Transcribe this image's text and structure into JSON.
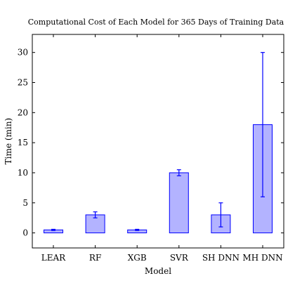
{
  "chart_data": {
    "type": "bar",
    "title": "Computational Cost of Each Model for 365 Days of Training Data",
    "xlabel": "Model",
    "ylabel": "Time (min)",
    "categories": [
      "LEAR",
      "RF",
      "XGB",
      "SVR",
      "SH DNN",
      "MH DNN"
    ],
    "values": [
      0.5,
      3.0,
      0.5,
      10.0,
      3.0,
      18.0
    ],
    "error_low": [
      0.4,
      2.5,
      0.4,
      9.5,
      1.0,
      6.0
    ],
    "error_high": [
      0.6,
      3.5,
      0.6,
      10.5,
      5.0,
      30.0
    ],
    "ylim": [
      -2.5,
      33
    ],
    "yticks": [
      0,
      5,
      10,
      15,
      20,
      25,
      30
    ],
    "grid": false,
    "bar_fill": "#b3b3ff",
    "bar_stroke": "#0000ff",
    "error_color": "#0000ff"
  }
}
